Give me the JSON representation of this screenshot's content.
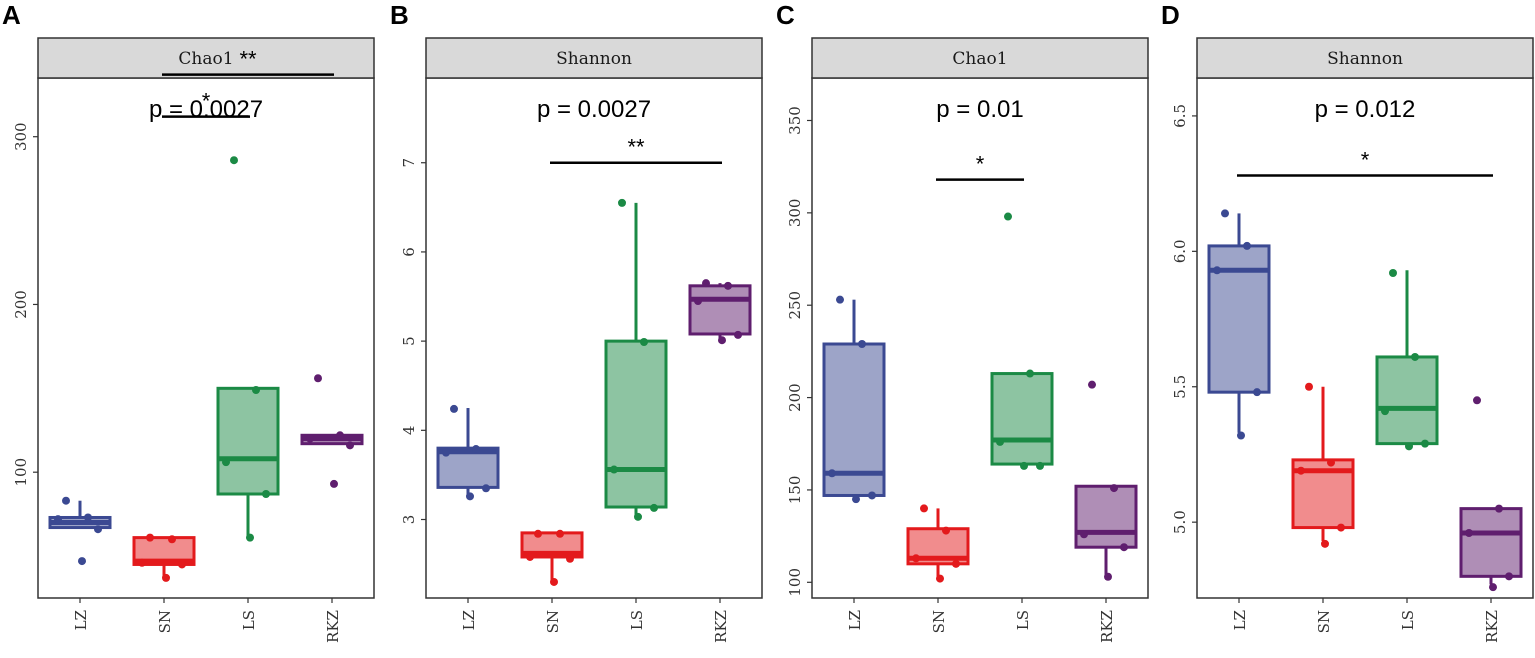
{
  "colors": {
    "LZ": "#3B4992",
    "SN": "#E31A1C",
    "LS": "#1B8A45",
    "RKZ": "#5F1E6E",
    "strip_bg": "#D9D9D9",
    "frame": "#333333"
  },
  "chart_data": [
    {
      "panel": "A",
      "type": "box",
      "title": "Chao1",
      "categories": [
        "LZ",
        "SN",
        "LS",
        "RKZ"
      ],
      "ylim": [
        25,
        335
      ],
      "yticks": [
        100,
        200,
        300
      ],
      "ytick_labels": [
        "100",
        "200",
        "300"
      ],
      "pvalue": "p = 0.0027",
      "boxes": [
        {
          "group": "LZ",
          "q1": 67,
          "median": 70,
          "q3": 73,
          "whisker_low": 67,
          "whisker_high": 83
        },
        {
          "group": "SN",
          "q1": 45,
          "median": 47,
          "q3": 61,
          "whisker_low": 37,
          "whisker_high": 61
        },
        {
          "group": "LS",
          "q1": 87,
          "median": 108,
          "q3": 150,
          "whisker_low": 62,
          "whisker_high": 150
        },
        {
          "group": "RKZ",
          "q1": 117,
          "median": 120,
          "q3": 122,
          "whisker_low": 117,
          "whisker_high": 122
        }
      ],
      "points": [
        {
          "group": "LZ",
          "values": [
            83,
            73,
            72,
            66,
            47
          ]
        },
        {
          "group": "SN",
          "values": [
            61,
            60,
            46,
            45,
            37
          ]
        },
        {
          "group": "LS",
          "values": [
            286,
            149,
            106,
            87,
            61
          ]
        },
        {
          "group": "RKZ",
          "values": [
            156,
            122,
            120,
            116,
            93
          ]
        }
      ],
      "comparisons": [
        {
          "from": "SN",
          "to": "RKZ",
          "y": 337,
          "label": "**"
        },
        {
          "from": "SN",
          "to": "LS",
          "y": 312,
          "label": "*"
        }
      ]
    },
    {
      "panel": "B",
      "type": "box",
      "title": "Shannon",
      "categories": [
        "LZ",
        "SN",
        "LS",
        "RKZ"
      ],
      "ylim": [
        2.12,
        7.95
      ],
      "yticks": [
        3,
        4,
        5,
        6,
        7
      ],
      "ytick_labels": [
        "3",
        "4",
        "5",
        "6",
        "7"
      ],
      "pvalue": "p = 0.0027",
      "boxes": [
        {
          "group": "LZ",
          "q1": 3.36,
          "median": 3.76,
          "q3": 3.8,
          "whisker_low": 3.26,
          "whisker_high": 4.25
        },
        {
          "group": "SN",
          "q1": 2.58,
          "median": 2.62,
          "q3": 2.85,
          "whisker_low": 2.32,
          "whisker_high": 2.85
        },
        {
          "group": "LS",
          "q1": 3.14,
          "median": 3.56,
          "q3": 5.0,
          "whisker_low": 3.05,
          "whisker_high": 6.55
        },
        {
          "group": "RKZ",
          "q1": 5.08,
          "median": 5.47,
          "q3": 5.62,
          "whisker_low": 5.02,
          "whisker_high": 5.65
        }
      ],
      "points": [
        {
          "group": "LZ",
          "values": [
            4.24,
            3.79,
            3.75,
            3.35,
            3.26
          ]
        },
        {
          "group": "SN",
          "values": [
            2.84,
            2.84,
            2.58,
            2.56,
            2.3
          ]
        },
        {
          "group": "LS",
          "values": [
            6.55,
            4.99,
            3.56,
            3.13,
            3.03
          ]
        },
        {
          "group": "RKZ",
          "values": [
            5.65,
            5.62,
            5.45,
            5.07,
            5.01
          ]
        }
      ],
      "comparisons": [
        {
          "from": "SN",
          "to": "RKZ",
          "y": 7.0,
          "label": "**"
        }
      ]
    },
    {
      "panel": "C",
      "type": "box",
      "title": "Chao1",
      "categories": [
        "LZ",
        "SN",
        "LS",
        "RKZ"
      ],
      "ylim": [
        91.5,
        373
      ],
      "yticks": [
        100,
        150,
        200,
        250,
        300,
        350
      ],
      "ytick_labels": [
        "100",
        "150",
        "200",
        "250",
        "300",
        "350"
      ],
      "pvalue": "p = 0.01",
      "boxes": [
        {
          "group": "LZ",
          "q1": 147,
          "median": 159,
          "q3": 229,
          "whisker_low": 147,
          "whisker_high": 253
        },
        {
          "group": "SN",
          "q1": 110,
          "median": 113,
          "q3": 129,
          "whisker_low": 103,
          "whisker_high": 140
        },
        {
          "group": "LS",
          "q1": 164,
          "median": 177,
          "q3": 213,
          "whisker_low": 164,
          "whisker_high": 213
        },
        {
          "group": "RKZ",
          "q1": 119,
          "median": 127,
          "q3": 152,
          "whisker_low": 104,
          "whisker_high": 152
        }
      ],
      "points": [
        {
          "group": "LZ",
          "values": [
            253,
            229,
            159,
            147,
            145
          ]
        },
        {
          "group": "SN",
          "values": [
            140,
            128,
            113,
            110,
            102
          ]
        },
        {
          "group": "LS",
          "values": [
            298,
            213,
            176,
            163,
            163
          ]
        },
        {
          "group": "RKZ",
          "values": [
            207,
            151,
            126,
            119,
            103
          ]
        }
      ],
      "comparisons": [
        {
          "from": "SN",
          "to": "LS",
          "y": 318,
          "label": "*"
        }
      ]
    },
    {
      "panel": "D",
      "type": "box",
      "title": "Shannon",
      "categories": [
        "LZ",
        "SN",
        "LS",
        "RKZ"
      ],
      "ylim": [
        4.72,
        6.64
      ],
      "yticks": [
        5.0,
        5.5,
        6.0,
        6.5
      ],
      "ytick_labels": [
        "5.0",
        "5.5",
        "6.0",
        "6.5"
      ],
      "pvalue": "p = 0.012",
      "boxes": [
        {
          "group": "LZ",
          "q1": 5.48,
          "median": 5.93,
          "q3": 6.02,
          "whisker_low": 5.33,
          "whisker_high": 6.14
        },
        {
          "group": "SN",
          "q1": 4.98,
          "median": 5.19,
          "q3": 5.23,
          "whisker_low": 4.93,
          "whisker_high": 5.5
        },
        {
          "group": "LS",
          "q1": 5.29,
          "median": 5.42,
          "q3": 5.61,
          "whisker_low": 5.29,
          "whisker_high": 5.93
        },
        {
          "group": "RKZ",
          "q1": 4.8,
          "median": 4.96,
          "q3": 5.05,
          "whisker_low": 4.77,
          "whisker_high": 5.05
        }
      ],
      "points": [
        {
          "group": "LZ",
          "values": [
            6.14,
            6.02,
            5.93,
            5.48,
            5.32
          ]
        },
        {
          "group": "SN",
          "values": [
            5.5,
            5.22,
            5.19,
            4.98,
            4.92
          ]
        },
        {
          "group": "LS",
          "values": [
            5.92,
            5.61,
            5.41,
            5.29,
            5.28
          ]
        },
        {
          "group": "RKZ",
          "values": [
            5.45,
            5.05,
            4.96,
            4.8,
            4.76
          ]
        }
      ],
      "comparisons": [
        {
          "from": "LZ",
          "to": "RKZ",
          "y": 6.28,
          "label": "*"
        }
      ]
    }
  ]
}
